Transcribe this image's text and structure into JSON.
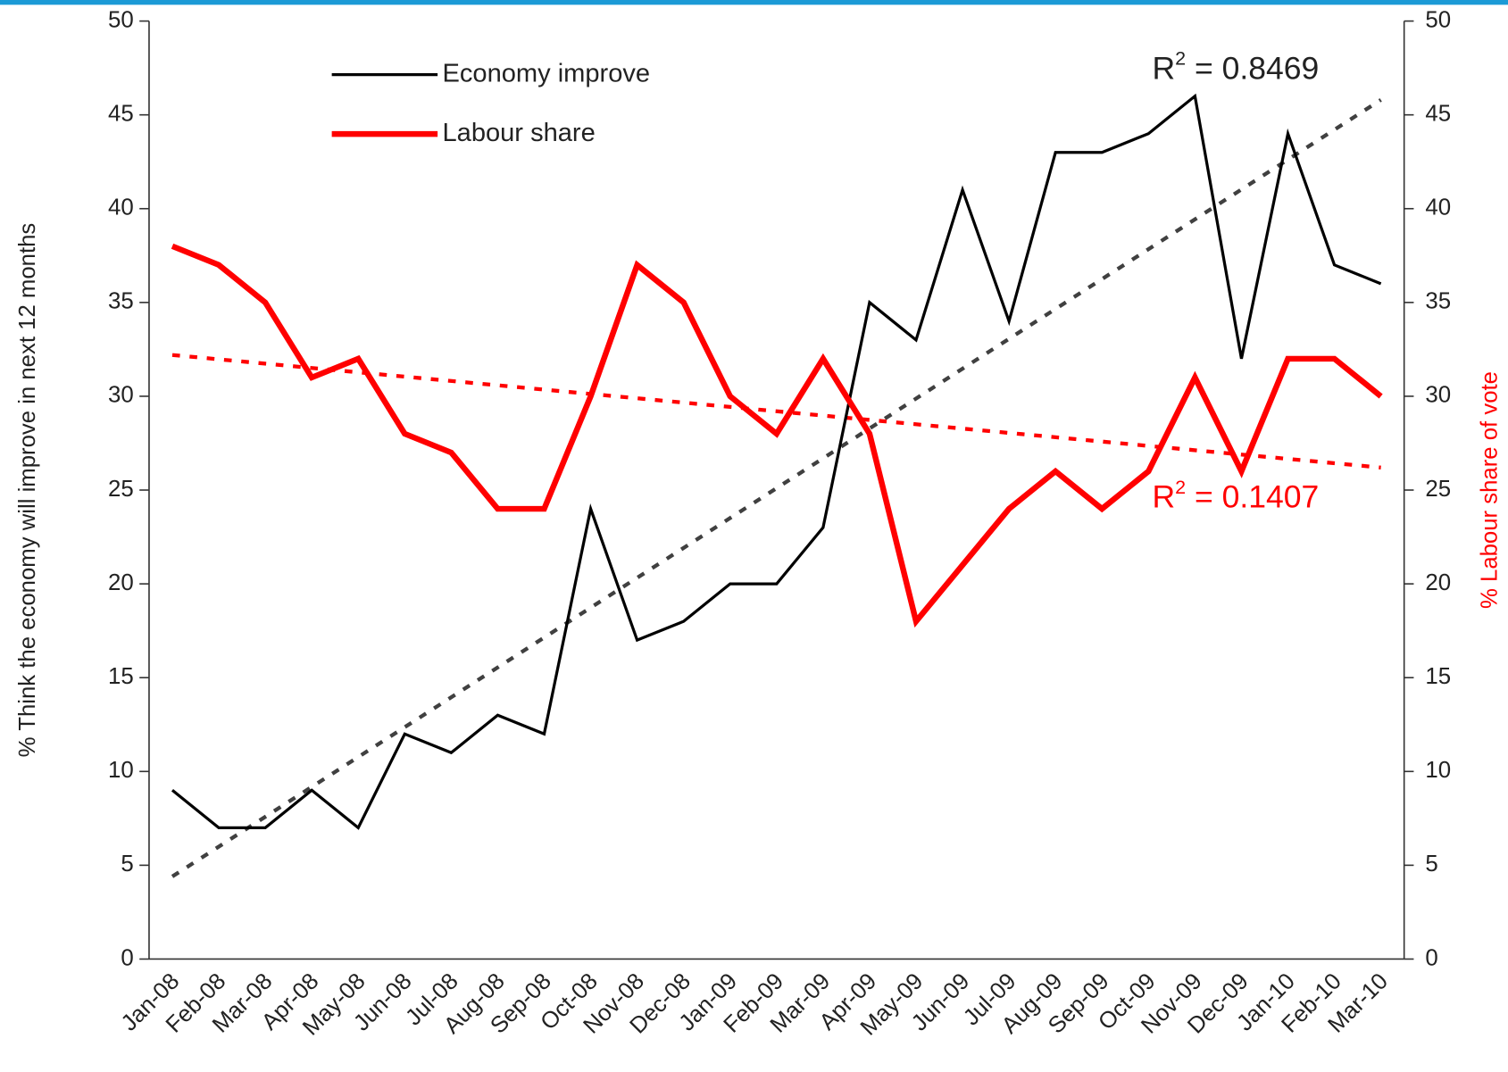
{
  "chart_data": {
    "type": "line",
    "categories": [
      "Jan-08",
      "Feb-08",
      "Mar-08",
      "Apr-08",
      "May-08",
      "Jun-08",
      "Jul-08",
      "Aug-08",
      "Sep-08",
      "Oct-08",
      "Nov-08",
      "Dec-08",
      "Jan-09",
      "Feb-09",
      "Mar-09",
      "Apr-09",
      "May-09",
      "Jun-09",
      "Jul-09",
      "Aug-09",
      "Sep-09",
      "Oct-09",
      "Nov-09",
      "Dec-09",
      "Jan-10",
      "Feb-10",
      "Mar-10"
    ],
    "series": [
      {
        "name": "Economy improve",
        "color": "#000000",
        "width": 3,
        "values": [
          9,
          7,
          7,
          9,
          7,
          12,
          11,
          13,
          12,
          24,
          17,
          18,
          20,
          20,
          23,
          35,
          33,
          41,
          34,
          43,
          43,
          44,
          46,
          32,
          44,
          37,
          36
        ]
      },
      {
        "name": "Labour share",
        "color": "#ff0000",
        "width": 6,
        "axis": "y2",
        "values": [
          38,
          37,
          35,
          31,
          32,
          28,
          27,
          24,
          24,
          30,
          37,
          35,
          30,
          28,
          32,
          28,
          18,
          21,
          24,
          26,
          24,
          26,
          31,
          26,
          32,
          32,
          30
        ]
      }
    ],
    "trendlines": [
      {
        "series": 0,
        "color": "#404040",
        "start": 4.4,
        "end": 45.8,
        "r2": {
          "base": "R",
          "sup": "2",
          "text": " = 0.8469"
        }
      },
      {
        "series": 1,
        "color": "#ff0000",
        "start": 32.2,
        "end": 26.2,
        "r2": {
          "base": "R",
          "sup": "2",
          "text": " = 0.1407"
        }
      }
    ],
    "ylabel": "% Think the economy will improve in next 12 months",
    "y2label": "% Labour share of vote",
    "ylim": [
      0,
      50
    ],
    "yticks": [
      0,
      5,
      10,
      15,
      20,
      25,
      30,
      35,
      40,
      45,
      50
    ],
    "y2lim": [
      0,
      50
    ],
    "y2ticks": [
      0,
      5,
      10,
      15,
      20,
      25,
      30,
      35,
      40,
      45,
      50
    ]
  }
}
